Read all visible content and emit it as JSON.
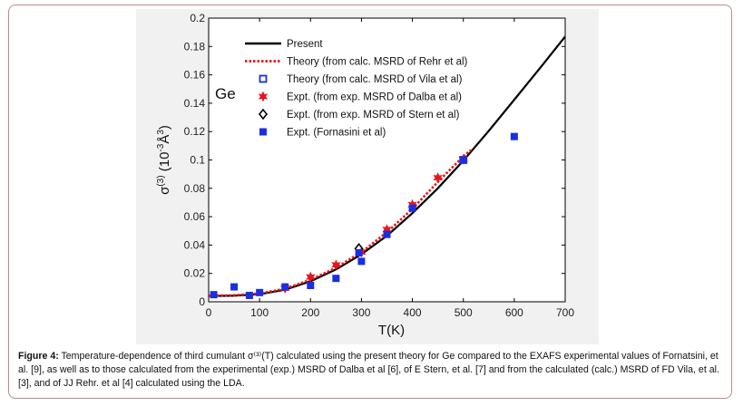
{
  "caption": {
    "label": "Figure 4:",
    "text": " Temperature-dependence of third cumulant σ⁽³⁾(T) calculated using the present theory for Ge compared to the EXAFS experimental values of Fornatsini, et al. [9], as well as to those calculated from the experimental (exp.) MSRD of Dalba et al [6], of E Stern, et al. [7] and from the calculated (calc.) MSRD of FD Vila, et al. [3], and of JJ Rehr. et al [4] calculated using the LDA."
  },
  "chart_data": {
    "type": "scatter",
    "xlabel": "T(K)",
    "ylabel": "σ(3) (10-3Å3)",
    "ylabel_parts": {
      "sigma": "σ",
      "sigma_sup": "(3)",
      "open": " (10",
      "exp": "-3",
      "unit": "Å",
      "unit_sup": "3",
      "close": ")"
    },
    "xlim": [
      0,
      700
    ],
    "ylim": [
      0,
      0.2
    ],
    "xticks": [
      "0",
      "100",
      "200",
      "300",
      "400",
      "500",
      "600",
      "700"
    ],
    "yticks": [
      "0",
      "0.02",
      "0.04",
      "0.06",
      "0.08",
      "0.1",
      "0.12",
      "0.14",
      "0.16",
      "0.18",
      "0.2"
    ],
    "annotation": "Ge",
    "legend_position": "top-left",
    "series": [
      {
        "name": "Present",
        "style": "solid-line",
        "color": "#000000",
        "x": [
          0,
          50,
          100,
          150,
          200,
          250,
          300,
          350,
          400,
          450,
          500,
          550,
          600,
          650,
          700
        ],
        "y": [
          0.004,
          0.0043,
          0.0053,
          0.0085,
          0.0145,
          0.0228,
          0.0335,
          0.0465,
          0.0625,
          0.08,
          0.0995,
          0.1205,
          0.1425,
          0.1645,
          0.187
        ]
      },
      {
        "name": "Theory (from calc. MSRD of Rehr et al)",
        "style": "dotted-line",
        "color": "#e8141a",
        "x": [
          0,
          50,
          100,
          150,
          200,
          250,
          300,
          350,
          400,
          450,
          500,
          515
        ],
        "y": [
          0.0042,
          0.0046,
          0.0058,
          0.0092,
          0.0155,
          0.024,
          0.035,
          0.049,
          0.0655,
          0.0845,
          0.1025,
          0.107
        ]
      },
      {
        "name": "Theory (from calc. MSRD of Vila et al)",
        "style": "open-square",
        "color": "#1a2fe0",
        "x": [
          500
        ],
        "y": [
          0.1
        ]
      },
      {
        "name": "Expt. (from exp. MSRD of Dalba et al)",
        "style": "star",
        "color": "#e8141a",
        "x": [
          150,
          200,
          250,
          300,
          350,
          400,
          450,
          500
        ],
        "y": [
          0.0095,
          0.0175,
          0.026,
          0.035,
          0.051,
          0.0685,
          0.0875,
          0.1005
        ]
      },
      {
        "name": "Expt. (from exp. MSRD of Stern et al)",
        "style": "open-diamond",
        "color": "#000000",
        "x": [
          295
        ],
        "y": [
          0.0375
        ]
      },
      {
        "name": "Expt. (Fornasini et al)",
        "style": "filled-square",
        "color": "#1a2fe0",
        "x": [
          10,
          50,
          80,
          100,
          150,
          200,
          250,
          295,
          300,
          350,
          400,
          500,
          600
        ],
        "y": [
          0.005,
          0.0105,
          0.0045,
          0.0065,
          0.0105,
          0.0115,
          0.0165,
          0.0345,
          0.0285,
          0.0475,
          0.066,
          0.1,
          0.1165
        ]
      }
    ]
  }
}
